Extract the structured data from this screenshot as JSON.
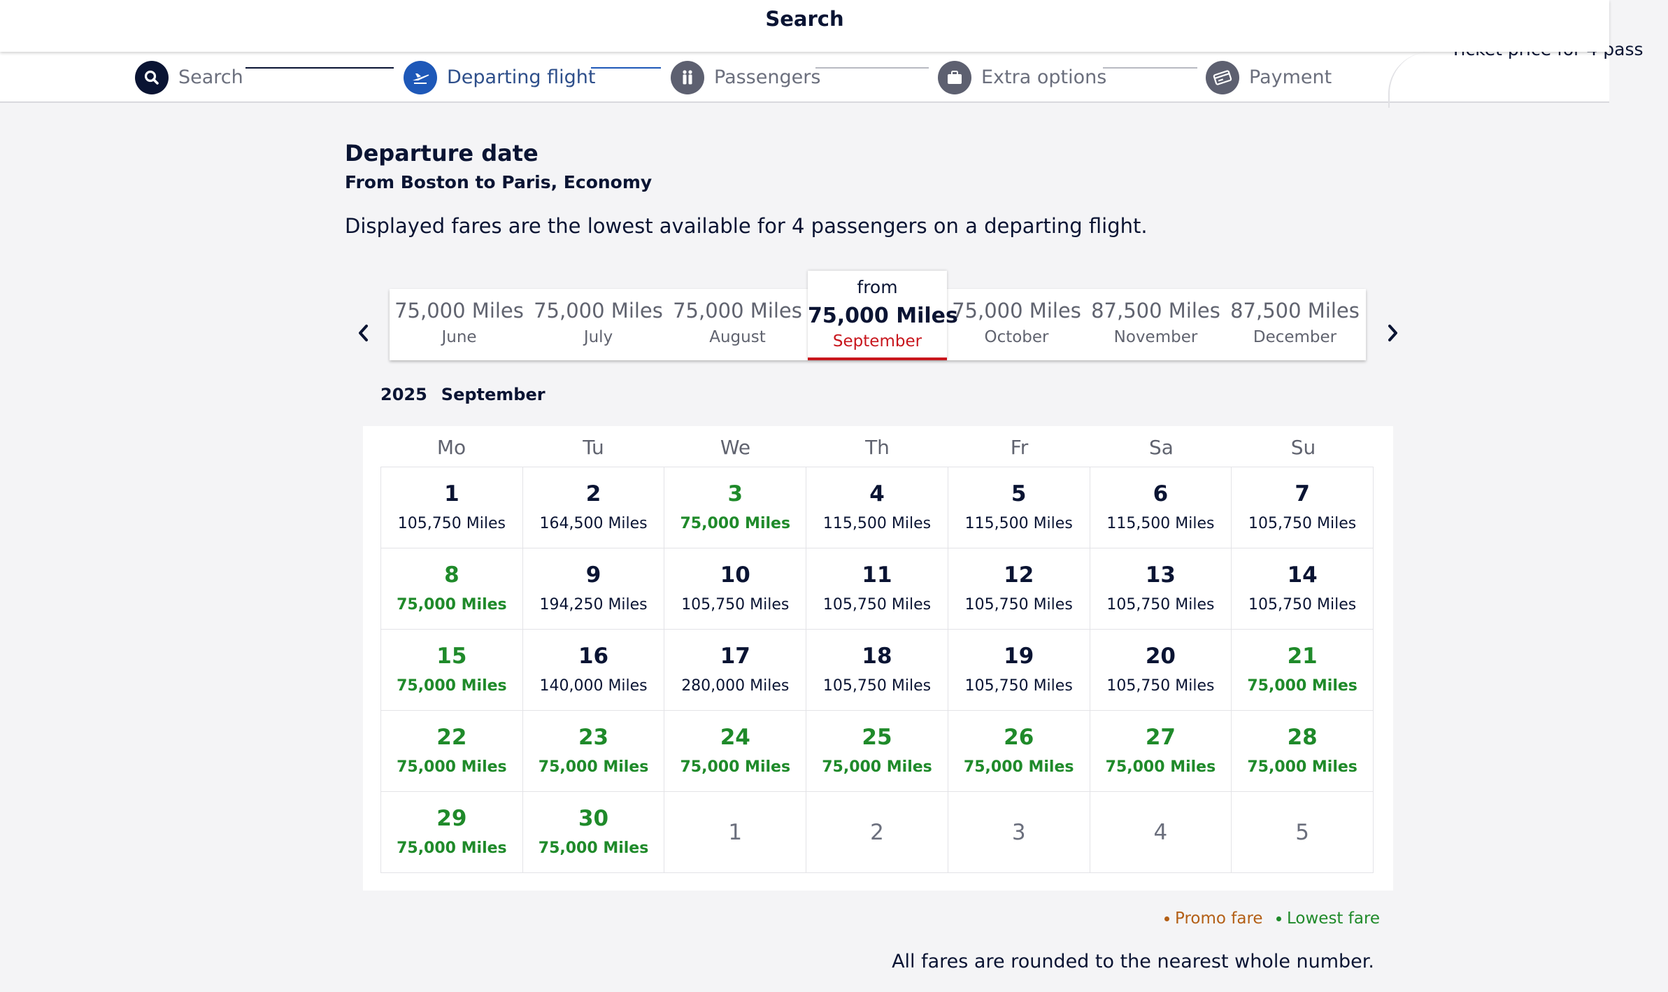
{
  "header": {
    "title": "Search"
  },
  "steps": [
    {
      "label": "Search",
      "icon": "search-icon",
      "state": "done"
    },
    {
      "label": "Departing flight",
      "icon": "plane-icon",
      "state": "active"
    },
    {
      "label": "Passengers",
      "icon": "passengers-icon",
      "state": "pending"
    },
    {
      "label": "Extra options",
      "icon": "briefcase-icon",
      "state": "pending"
    },
    {
      "label": "Payment",
      "icon": "credit-card-icon",
      "state": "pending"
    }
  ],
  "summary": {
    "text": "Ticket price for 4 pass"
  },
  "page": {
    "title": "Departure date",
    "route": "From Boston to Paris, Economy",
    "notice": "Displayed fares are the lowest available for 4 passengers on a departing flight."
  },
  "months": [
    {
      "price": "75,000 Miles",
      "name": "June"
    },
    {
      "price": "75,000 Miles",
      "name": "July"
    },
    {
      "price": "75,000 Miles",
      "name": "August"
    },
    {
      "from": "from",
      "price": "75,000 Miles",
      "name": "September",
      "selected": true
    },
    {
      "price": "75,000 Miles",
      "name": "October"
    },
    {
      "price": "87,500 Miles",
      "name": "November"
    },
    {
      "price": "87,500 Miles",
      "name": "December"
    }
  ],
  "calendar": {
    "year": "2025",
    "month": "September",
    "weekdays": [
      "Mo",
      "Tu",
      "We",
      "Th",
      "Fr",
      "Sa",
      "Su"
    ],
    "days": [
      {
        "day": "1",
        "price": "105,750 Miles"
      },
      {
        "day": "2",
        "price": "164,500 Miles"
      },
      {
        "day": "3",
        "price": "75,000 Miles",
        "lowest": true
      },
      {
        "day": "4",
        "price": "115,500 Miles"
      },
      {
        "day": "5",
        "price": "115,500 Miles"
      },
      {
        "day": "6",
        "price": "115,500 Miles"
      },
      {
        "day": "7",
        "price": "105,750 Miles"
      },
      {
        "day": "8",
        "price": "75,000 Miles",
        "lowest": true
      },
      {
        "day": "9",
        "price": "194,250 Miles"
      },
      {
        "day": "10",
        "price": "105,750 Miles"
      },
      {
        "day": "11",
        "price": "105,750 Miles"
      },
      {
        "day": "12",
        "price": "105,750 Miles"
      },
      {
        "day": "13",
        "price": "105,750 Miles"
      },
      {
        "day": "14",
        "price": "105,750 Miles"
      },
      {
        "day": "15",
        "price": "75,000 Miles",
        "lowest": true
      },
      {
        "day": "16",
        "price": "140,000 Miles"
      },
      {
        "day": "17",
        "price": "280,000 Miles"
      },
      {
        "day": "18",
        "price": "105,750 Miles"
      },
      {
        "day": "19",
        "price": "105,750 Miles"
      },
      {
        "day": "20",
        "price": "105,750 Miles"
      },
      {
        "day": "21",
        "price": "75,000 Miles",
        "lowest": true
      },
      {
        "day": "22",
        "price": "75,000 Miles",
        "lowest": true
      },
      {
        "day": "23",
        "price": "75,000 Miles",
        "lowest": true
      },
      {
        "day": "24",
        "price": "75,000 Miles",
        "lowest": true
      },
      {
        "day": "25",
        "price": "75,000 Miles",
        "lowest": true
      },
      {
        "day": "26",
        "price": "75,000 Miles",
        "lowest": true
      },
      {
        "day": "27",
        "price": "75,000 Miles",
        "lowest": true
      },
      {
        "day": "28",
        "price": "75,000 Miles",
        "lowest": true
      },
      {
        "day": "29",
        "price": "75,000 Miles",
        "lowest": true
      },
      {
        "day": "30",
        "price": "75,000 Miles",
        "lowest": true
      }
    ],
    "next_month_days": [
      "1",
      "2",
      "3",
      "4",
      "5"
    ]
  },
  "legend": {
    "promo": "Promo fare",
    "lowest": "Lowest fare"
  },
  "footnote": "All fares are rounded to the nearest whole number.",
  "colors": {
    "navy": "#0a1433",
    "active_blue": "#1e58b8",
    "lowest_green": "#1f8a2a",
    "promo_orange": "#b35f16",
    "selected_red": "#c8161d"
  }
}
